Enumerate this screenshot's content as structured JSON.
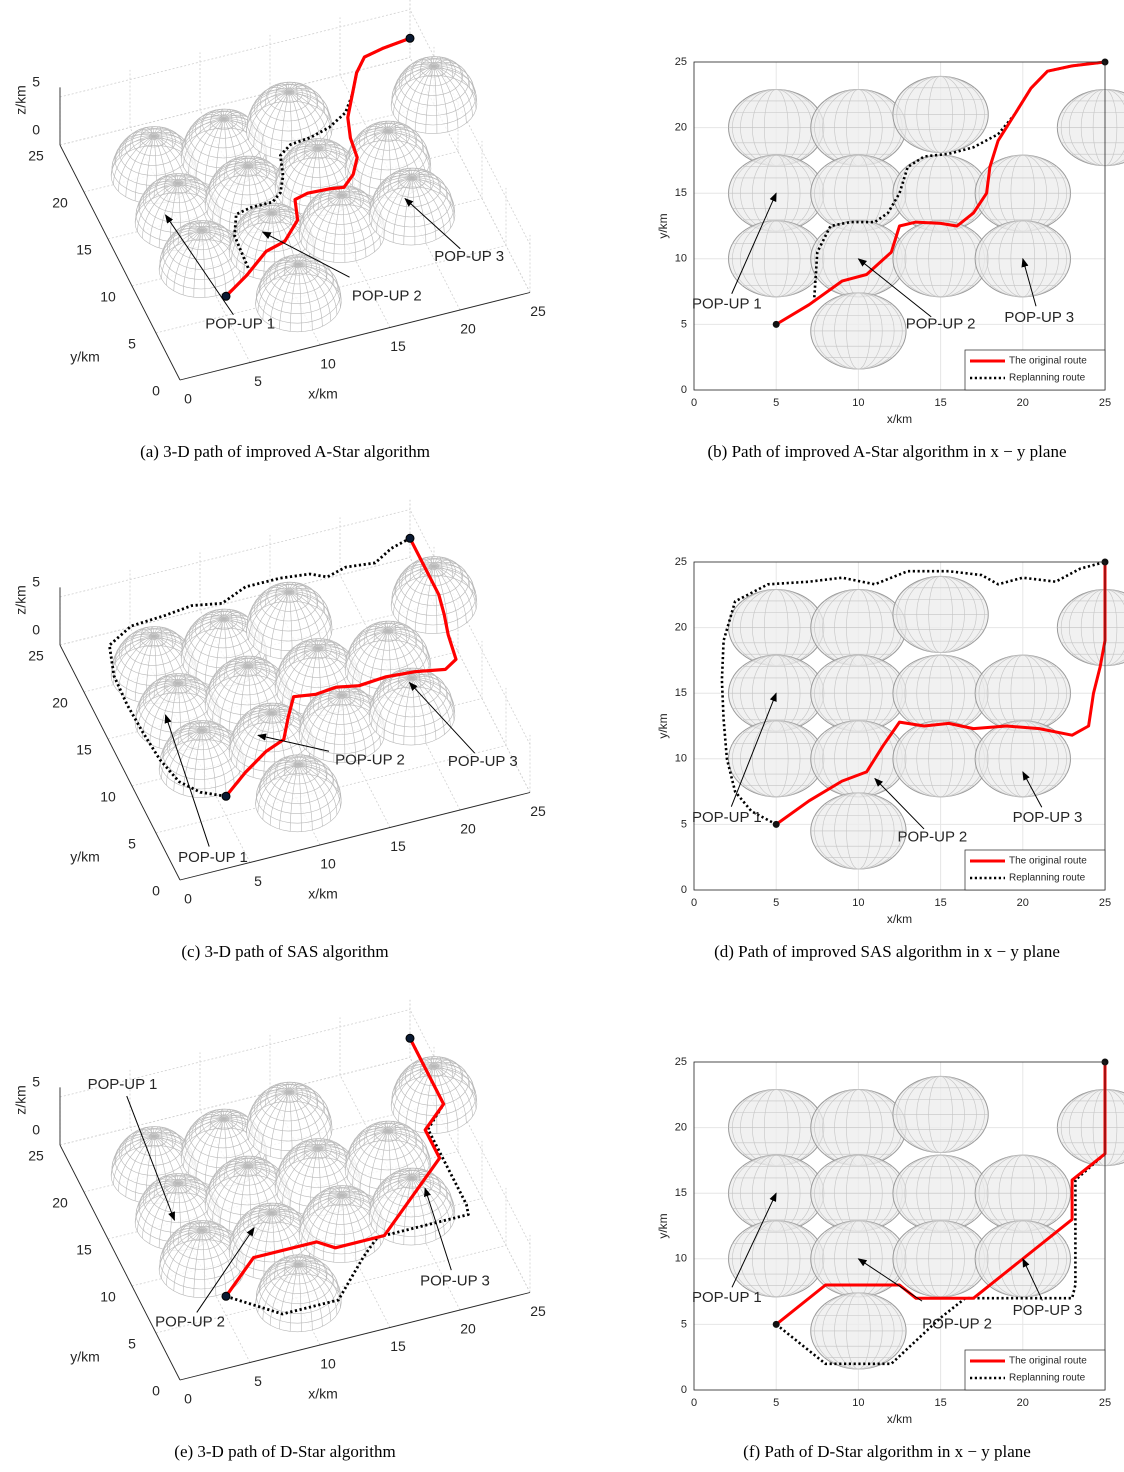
{
  "chart_data": [
    {
      "type": "line3d",
      "caption": "(a)  3-D path of improved A-Star algorithm",
      "xlabel": "x/km",
      "ylabel": "y/km",
      "zlabel": "z/km",
      "xlim": [
        0,
        25
      ],
      "ylim": [
        0,
        25
      ],
      "zlim": [
        0,
        6
      ],
      "xticks": [
        0,
        5,
        10,
        15,
        20,
        25
      ],
      "yticks": [
        0,
        5,
        10,
        15,
        20,
        25
      ],
      "zticks": [
        0,
        5
      ],
      "grid": true,
      "obstacles": {
        "x": [
          5,
          10,
          15,
          25,
          5,
          10,
          15,
          20,
          5,
          10,
          15,
          20,
          10
        ],
        "y": [
          20,
          20,
          21,
          20,
          15,
          15,
          15,
          15,
          10,
          10,
          10,
          10,
          4.5
        ],
        "r": 2.9,
        "h": 4
      },
      "series": [
        {
          "color": "#ff0000",
          "line_style": "solid",
          "x": [
            5,
            7,
            9,
            10.5,
            12,
            12.5,
            13.5,
            15,
            16,
            17,
            17.8,
            18,
            18.5,
            19.5,
            20.5,
            21.5,
            23,
            25
          ],
          "values": [
            5,
            6.5,
            8.3,
            8.8,
            10.5,
            12.5,
            12.8,
            12.7,
            12.5,
            13.5,
            15,
            17,
            19,
            21,
            23,
            24.3,
            24.7,
            25
          ],
          "z": [
            2,
            2,
            2,
            2,
            2,
            2,
            2,
            2,
            2,
            2,
            2,
            2,
            2,
            2,
            2,
            2,
            2,
            2
          ]
        },
        {
          "color": "#000000",
          "line_style": "dotted",
          "x": [
            7.3,
            7.5,
            8.3,
            9.5,
            11,
            11.8,
            12.5,
            13,
            14,
            15.5,
            17,
            18.5,
            19.5,
            20.5,
            21.5,
            23,
            25
          ],
          "values": [
            6.7,
            10.5,
            12.5,
            12.8,
            12.8,
            13.5,
            15,
            17,
            17.8,
            18,
            18.5,
            19.5,
            21,
            23,
            24.3,
            24.7,
            25
          ],
          "z": [
            2,
            2,
            2,
            2,
            2,
            2,
            2,
            2,
            2,
            2,
            2,
            2,
            2,
            2,
            2,
            2,
            2
          ]
        }
      ],
      "annotations": [
        {
          "text": "POP-UP 1",
          "x": 3.8,
          "y": 14.1,
          "z": 2,
          "text_x": 5.6,
          "text_y": 3.8,
          "text_z": 0
        },
        {
          "text": "POP-UP 2",
          "x": 9.4,
          "y": 10.2,
          "z": 2,
          "text_x": 15.8,
          "text_y": 3,
          "text_z": 0
        },
        {
          "text": "POP-UP 3",
          "x": 19.5,
          "y": 10,
          "z": 2,
          "text_x": 22.3,
          "text_y": 4.8,
          "text_z": 0
        }
      ]
    },
    {
      "type": "line",
      "caption": "(b)  Path of improved A-Star algorithm in x − y plane",
      "xlabel": "x/km",
      "ylabel": "y/km",
      "xlim": [
        0,
        25
      ],
      "ylim": [
        0,
        25
      ],
      "xticks": [
        0,
        5,
        10,
        15,
        20,
        25
      ],
      "yticks": [
        0,
        5,
        10,
        15,
        20,
        25
      ],
      "grid": true,
      "legend": "lower right",
      "obstacles": {
        "x": [
          5,
          10,
          15,
          25,
          5,
          10,
          15,
          20,
          5,
          10,
          15,
          20,
          10
        ],
        "y": [
          20,
          20,
          21,
          20,
          15,
          15,
          15,
          15,
          10,
          10,
          10,
          10,
          4.5
        ],
        "r": 2.9
      },
      "series": [
        {
          "name": "The original route",
          "color": "#ff0000",
          "line_style": "solid",
          "x": [
            5,
            7,
            9,
            10.5,
            12,
            12.5,
            13.5,
            15,
            16,
            17,
            17.8,
            18,
            18.5,
            19.5,
            20.5,
            21.5,
            23,
            25
          ],
          "values": [
            5,
            6.5,
            8.3,
            8.8,
            10.5,
            12.5,
            12.8,
            12.7,
            12.5,
            13.5,
            15,
            17,
            19,
            21,
            23,
            24.3,
            24.7,
            25
          ]
        },
        {
          "name": "Replanning route",
          "color": "#000000",
          "line_style": "dotted",
          "x": [
            7.3,
            7.5,
            8.3,
            9.5,
            11,
            11.8,
            12.5,
            13,
            14,
            15.5,
            17,
            18.5,
            19.5,
            20.5,
            21.5,
            23,
            25
          ],
          "values": [
            6.7,
            10.5,
            12.5,
            12.8,
            12.8,
            13.5,
            15,
            17,
            17.8,
            18,
            18.5,
            19.5,
            21,
            23,
            24.3,
            24.7,
            25
          ]
        }
      ],
      "annotations": [
        {
          "text": "POP-UP 1",
          "x": 5,
          "y": 15,
          "text_x": 2,
          "text_y": 6.5
        },
        {
          "text": "POP-UP 2",
          "x": 10,
          "y": 10,
          "text_x": 15,
          "text_y": 5
        },
        {
          "text": "POP-UP 3",
          "x": 20,
          "y": 10,
          "text_x": 21,
          "text_y": 5.5
        }
      ]
    },
    {
      "type": "line3d",
      "caption": "(c)  3-D path of SAS algorithm",
      "xlabel": "x/km",
      "ylabel": "y/km",
      "zlabel": "z/km",
      "xlim": [
        0,
        25
      ],
      "ylim": [
        0,
        25
      ],
      "zlim": [
        0,
        6
      ],
      "xticks": [
        0,
        5,
        10,
        15,
        20,
        25
      ],
      "yticks": [
        0,
        5,
        10,
        15,
        20,
        25
      ],
      "zticks": [
        0,
        5
      ],
      "grid": true,
      "obstacles": {
        "x": [
          5,
          10,
          15,
          25,
          5,
          10,
          15,
          20,
          5,
          10,
          15,
          20,
          10
        ],
        "y": [
          20,
          20,
          21,
          20,
          15,
          15,
          15,
          15,
          10,
          10,
          10,
          10,
          4.5
        ],
        "r": 2.9,
        "h": 4
      },
      "series": [
        {
          "color": "#ff0000",
          "line_style": "solid",
          "x": [
            5,
            7,
            9,
            10.5,
            11.5,
            12.5,
            14,
            15.5,
            17,
            19,
            21,
            23,
            24,
            24.3,
            24.7,
            25,
            25
          ],
          "values": [
            5,
            6.8,
            8.3,
            9,
            11,
            12.8,
            12.5,
            12.7,
            12.3,
            12.5,
            12.3,
            11.8,
            12.5,
            15,
            17,
            19,
            25
          ],
          "z": [
            2,
            2,
            2,
            2,
            2,
            2,
            2,
            2,
            2,
            2,
            2,
            2,
            2,
            2,
            2,
            2,
            2
          ]
        },
        {
          "color": "#000000",
          "line_style": "dotted",
          "x": [
            5,
            3.5,
            2.5,
            2,
            1.8,
            1.7,
            1.8,
            2.5,
            4.5,
            7,
            9,
            11,
            13,
            15.5,
            17.5,
            18.5,
            20,
            22,
            23.5,
            25
          ],
          "values": [
            5,
            6,
            7.5,
            10,
            13,
            16,
            19,
            22,
            23.3,
            23.5,
            23.8,
            23.3,
            24.3,
            24.3,
            24,
            23.3,
            23.8,
            23.5,
            24.5,
            25
          ],
          "z": [
            2,
            2,
            2,
            2,
            2,
            2,
            2,
            2,
            2,
            2,
            2,
            2,
            2,
            2,
            2,
            2,
            2,
            2,
            2,
            2
          ]
        }
      ],
      "annotations": [
        {
          "text": "POP-UP 1",
          "x": 3.8,
          "y": 14.1,
          "z": 2,
          "text_x": 2.8,
          "text_y": 1.3,
          "text_z": 0
        },
        {
          "text": "POP-UP 2",
          "x": 9,
          "y": 10,
          "z": 2,
          "text_x": 15.9,
          "text_y": 6.8,
          "text_z": 0
        },
        {
          "text": "POP-UP 3",
          "x": 20.3,
          "y": 11.4,
          "z": 2,
          "text_x": 23,
          "text_y": 4,
          "text_z": 0
        }
      ]
    },
    {
      "type": "line",
      "caption": "(d)  Path of improved SAS algorithm in x − y plane",
      "xlabel": "x/km",
      "ylabel": "y/km",
      "xlim": [
        0,
        25
      ],
      "ylim": [
        0,
        25
      ],
      "xticks": [
        0,
        5,
        10,
        15,
        20,
        25
      ],
      "yticks": [
        0,
        5,
        10,
        15,
        20,
        25
      ],
      "grid": true,
      "legend": "lower right",
      "obstacles": {
        "x": [
          5,
          10,
          15,
          25,
          5,
          10,
          15,
          20,
          5,
          10,
          15,
          20,
          10
        ],
        "y": [
          20,
          20,
          21,
          20,
          15,
          15,
          15,
          15,
          10,
          10,
          10,
          10,
          4.5
        ],
        "r": 2.9
      },
      "series": [
        {
          "name": "The original route",
          "color": "#ff0000",
          "line_style": "solid",
          "x": [
            5,
            7,
            9,
            10.5,
            11.5,
            12.5,
            14,
            15.5,
            17,
            19,
            21,
            23,
            24,
            24.3,
            24.7,
            25,
            25
          ],
          "values": [
            5,
            6.8,
            8.3,
            9,
            11,
            12.8,
            12.5,
            12.7,
            12.3,
            12.5,
            12.3,
            11.8,
            12.5,
            15,
            17,
            19,
            25
          ]
        },
        {
          "name": "Replanning route",
          "color": "#000000",
          "line_style": "dotted",
          "x": [
            5,
            3.5,
            2.5,
            2,
            1.8,
            1.7,
            1.8,
            2.5,
            4.5,
            7,
            9,
            11,
            13,
            15.5,
            17.5,
            18.5,
            20,
            22,
            23.5,
            25
          ],
          "values": [
            5,
            6,
            7.5,
            10,
            13,
            16,
            19,
            22,
            23.3,
            23.5,
            23.8,
            23.3,
            24.3,
            24.3,
            24,
            23.3,
            23.8,
            23.5,
            24.5,
            25
          ]
        }
      ],
      "annotations": [
        {
          "text": "POP-UP 1",
          "x": 5,
          "y": 15,
          "text_x": 2,
          "text_y": 5.5
        },
        {
          "text": "POP-UP 2",
          "x": 11,
          "y": 8.5,
          "text_x": 14.5,
          "text_y": 4
        },
        {
          "text": "POP-UP 3",
          "x": 20,
          "y": 9,
          "text_x": 21.5,
          "text_y": 5.5
        }
      ]
    },
    {
      "type": "line3d",
      "caption": "(e)  3-D path of D-Star algorithm",
      "xlabel": "x/km",
      "ylabel": "y/km",
      "zlabel": "z/km",
      "xlim": [
        0,
        25
      ],
      "ylim": [
        0,
        25
      ],
      "zlim": [
        0,
        6
      ],
      "xticks": [
        0,
        5,
        10,
        15,
        20,
        25
      ],
      "yticks": [
        0,
        5,
        10,
        15,
        20,
        25
      ],
      "zticks": [
        0,
        5
      ],
      "grid": true,
      "obstacles": {
        "x": [
          5,
          10,
          15,
          25,
          5,
          10,
          15,
          20,
          5,
          10,
          15,
          20,
          10
        ],
        "y": [
          20,
          20,
          21,
          20,
          15,
          15,
          15,
          15,
          10,
          10,
          10,
          10,
          4.5
        ],
        "r": 2.9,
        "h": 4
      },
      "series": [
        {
          "color": "#ff0000",
          "line_style": "solid",
          "x": [
            5,
            8,
            12.5,
            13.5,
            17,
            23,
            23,
            25,
            25
          ],
          "values": [
            5,
            8,
            8,
            7,
            7,
            13,
            16,
            18,
            25
          ],
          "z": [
            2,
            2,
            2,
            2,
            2,
            2,
            2,
            2,
            2
          ]
        },
        {
          "color": "#000000",
          "line_style": "dotted",
          "x": [
            5,
            8,
            12,
            15,
            16.5,
            23,
            23.2,
            23.2,
            25,
            25
          ],
          "values": [
            5,
            2,
            2,
            5.5,
            7,
            7,
            8,
            16,
            18,
            25
          ],
          "z": [
            2,
            2,
            2,
            2,
            2,
            2,
            2,
            2,
            2,
            2
          ]
        }
      ],
      "annotations": [
        {
          "text": "POP-UP 1",
          "x": 4.2,
          "y": 13.4,
          "z": 2,
          "text_x": 5.9,
          "text_y": 29.2,
          "text_z": 0
        },
        {
          "text": "POP-UP 2",
          "x": 9,
          "y": 10.8,
          "z": 2,
          "text_x": 2.5,
          "text_y": 5.2,
          "text_z": 0
        },
        {
          "text": "POP-UP 3",
          "x": 21.1,
          "y": 10.5,
          "z": 2,
          "text_x": 20.6,
          "text_y": 2.8,
          "text_z": 0
        }
      ]
    },
    {
      "type": "line",
      "caption": "(f)  Path of D-Star algorithm in x − y plane",
      "xlabel": "x/km",
      "ylabel": "y/km",
      "xlim": [
        0,
        25
      ],
      "ylim": [
        0,
        25
      ],
      "xticks": [
        0,
        5,
        10,
        15,
        20,
        25
      ],
      "yticks": [
        0,
        5,
        10,
        15,
        20,
        25
      ],
      "grid": true,
      "legend": "lower right",
      "obstacles": {
        "x": [
          5,
          10,
          15,
          25,
          5,
          10,
          15,
          20,
          5,
          10,
          15,
          20,
          10
        ],
        "y": [
          20,
          20,
          21,
          20,
          15,
          15,
          15,
          15,
          10,
          10,
          10,
          10,
          4.5
        ],
        "r": 2.9
      },
      "series": [
        {
          "name": "The original route",
          "color": "#ff0000",
          "line_style": "solid",
          "x": [
            5,
            8,
            12.5,
            13.5,
            17,
            23,
            23,
            25,
            25
          ],
          "values": [
            5,
            8,
            8,
            7,
            7,
            13,
            16,
            18,
            25
          ]
        },
        {
          "name": "Replanning route",
          "color": "#000000",
          "line_style": "dotted",
          "x": [
            5,
            8,
            12,
            15,
            16.5,
            23,
            23.2,
            23.2,
            25,
            25
          ],
          "values": [
            5,
            2,
            2,
            5.5,
            7,
            7,
            8,
            16,
            18,
            25
          ]
        }
      ],
      "annotations": [
        {
          "text": "POP-UP 1",
          "x": 5,
          "y": 15,
          "text_x": 2,
          "text_y": 7
        },
        {
          "text": "POP-UP 2",
          "x": 10,
          "y": 10,
          "text_x": 16,
          "text_y": 5
        },
        {
          "text": "POP-UP 3",
          "x": 20,
          "y": 10,
          "text_x": 21.5,
          "text_y": 6
        }
      ]
    }
  ]
}
